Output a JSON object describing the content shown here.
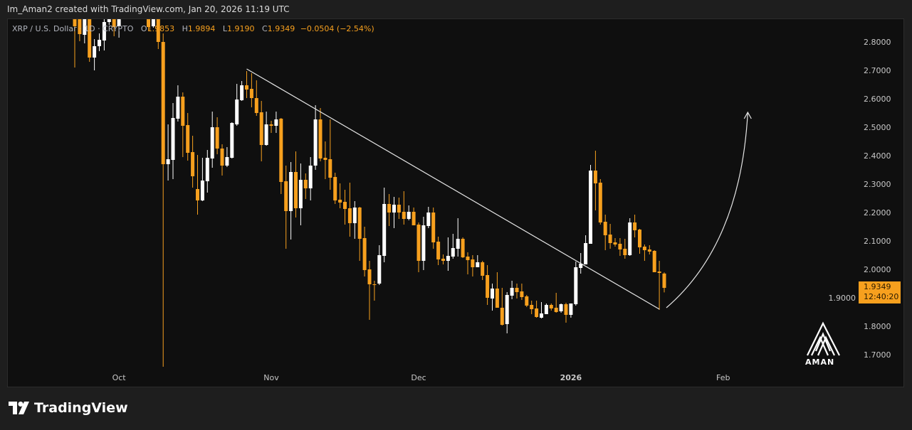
{
  "header": {
    "title": "Im_Aman2 created with TradingView.com, Jan 20, 2026 11:19 UTC"
  },
  "legend": {
    "symbol": "XRP / U.S. Dollar · 1D · CRYPTO",
    "open_label": "O",
    "open": "1.9853",
    "high_label": "H",
    "high": "1.9894",
    "low_label": "L",
    "low": "1.9190",
    "close_label": "C",
    "close": "1.9349",
    "change": "−0.0504 (−2.54%)"
  },
  "last_price": {
    "price": "1.9349",
    "countdown": "12:40:20"
  },
  "logo": {
    "text": "AMAN"
  },
  "footer": {
    "brand": "TradingView",
    "icon": "tradingview-logo-icon"
  },
  "colors": {
    "up": "#ffffff",
    "down": "#f7a01e",
    "background": "#0f0f0f",
    "trendline": "#e6e6e6",
    "price_box": "#f7a01e"
  },
  "chart_data": {
    "type": "candlestick",
    "title": "",
    "ylim": [
      1.63,
      2.88
    ],
    "yticks": [
      "2.8000",
      "2.7000",
      "2.6000",
      "2.5000",
      "2.4000",
      "2.3000",
      "2.2000",
      "2.1000",
      "2.0000",
      "1.9000",
      "1.8000",
      "1.7000"
    ],
    "xticks": [
      {
        "date": "2025-10-01",
        "label": "Oct"
      },
      {
        "date": "2025-11-01",
        "label": "Nov"
      },
      {
        "date": "2025-12-01",
        "label": "Dec"
      },
      {
        "date": "2026-01-01",
        "label": "2026"
      },
      {
        "date": "2026-02-01",
        "label": "Feb"
      }
    ],
    "columns": [
      "date",
      "open",
      "high",
      "low",
      "close"
    ],
    "candles": [
      [
        "2025-09-22",
        2.89,
        2.9,
        2.71,
        2.855
      ],
      [
        "2025-09-23",
        2.88,
        2.89,
        2.8025,
        2.8275
      ],
      [
        "2025-09-24",
        2.825,
        2.89,
        2.795,
        2.88
      ],
      [
        "2025-09-25",
        2.88,
        2.89,
        2.73,
        2.745
      ],
      [
        "2025-09-26",
        2.745,
        2.81,
        2.7,
        2.785
      ],
      [
        "2025-09-27",
        2.785,
        2.83,
        2.7675,
        2.8075
      ],
      [
        "2025-09-28",
        2.805,
        2.88,
        2.77,
        2.87
      ],
      [
        "2025-09-29",
        2.87,
        2.92,
        2.86,
        2.89
      ],
      [
        "2025-09-30",
        2.9,
        2.91,
        2.82,
        2.8525
      ],
      [
        "2025-10-01",
        2.855,
        2.93,
        2.815,
        2.9
      ],
      [
        "2025-10-02",
        2.9,
        3.0,
        2.89,
        2.97
      ],
      [
        "2025-10-03",
        2.97,
        3.03,
        2.94,
        3.0
      ],
      [
        "2025-10-04",
        3.0,
        3.02,
        2.93,
        2.96
      ],
      [
        "2025-10-05",
        2.96,
        3.0,
        2.92,
        2.95
      ],
      [
        "2025-10-06",
        2.95,
        2.98,
        2.89,
        2.9
      ],
      [
        "2025-10-07",
        2.9,
        2.92,
        2.84,
        2.8525
      ],
      [
        "2025-10-08",
        2.855,
        2.9,
        2.85,
        2.89
      ],
      [
        "2025-10-09",
        2.89,
        2.9,
        2.775,
        2.8
      ],
      [
        "2025-10-10",
        2.8,
        2.83,
        1.6575,
        2.37
      ],
      [
        "2025-10-11",
        2.37,
        2.51,
        2.3125,
        2.3875
      ],
      [
        "2025-10-12",
        2.385,
        2.585,
        2.3175,
        2.5325
      ],
      [
        "2025-10-13",
        2.53,
        2.6475,
        2.52,
        2.6075
      ],
      [
        "2025-10-14",
        2.6075,
        2.6225,
        2.395,
        2.505
      ],
      [
        "2025-10-15",
        2.5075,
        2.55,
        2.3825,
        2.41
      ],
      [
        "2025-10-16",
        2.4125,
        2.47,
        2.2875,
        2.3275
      ],
      [
        "2025-10-17",
        2.2825,
        2.4025,
        2.1925,
        2.2425
      ],
      [
        "2025-10-18",
        2.2425,
        2.3925,
        2.24,
        2.3125
      ],
      [
        "2025-10-19",
        2.31,
        2.42,
        2.27,
        2.3925
      ],
      [
        "2025-10-20",
        2.39,
        2.555,
        2.3575,
        2.5
      ],
      [
        "2025-10-21",
        2.5,
        2.535,
        2.405,
        2.425
      ],
      [
        "2025-10-22",
        2.425,
        2.44,
        2.33,
        2.365
      ],
      [
        "2025-10-23",
        2.365,
        2.43,
        2.36,
        2.395
      ],
      [
        "2025-10-24",
        2.3925,
        2.5175,
        2.39,
        2.515
      ],
      [
        "2025-10-25",
        2.51,
        2.6525,
        2.505,
        2.5975
      ],
      [
        "2025-10-26",
        2.595,
        2.6625,
        2.5925,
        2.6475
      ],
      [
        "2025-10-27",
        2.6475,
        2.6975,
        2.6025,
        2.6325
      ],
      [
        "2025-10-28",
        2.635,
        2.69,
        2.57,
        2.6025
      ],
      [
        "2025-10-29",
        2.6025,
        2.665,
        2.54,
        2.55
      ],
      [
        "2025-10-30",
        2.5525,
        2.5925,
        2.38,
        2.4375
      ],
      [
        "2025-10-31",
        2.4375,
        2.555,
        2.435,
        2.51
      ],
      [
        "2025-11-01",
        2.51,
        2.5225,
        2.48,
        2.505
      ],
      [
        "2025-11-02",
        2.505,
        2.555,
        2.48,
        2.5275
      ],
      [
        "2025-11-03",
        2.53,
        2.5325,
        2.265,
        2.3075
      ],
      [
        "2025-11-04",
        2.31,
        2.365,
        2.0725,
        2.205
      ],
      [
        "2025-11-05",
        2.205,
        2.3775,
        2.105,
        2.3425
      ],
      [
        "2025-11-06",
        2.3425,
        2.415,
        2.1825,
        2.215
      ],
      [
        "2025-11-07",
        2.215,
        2.3725,
        2.155,
        2.315
      ],
      [
        "2025-11-08",
        2.315,
        2.3375,
        2.2475,
        2.285
      ],
      [
        "2025-11-09",
        2.285,
        2.395,
        2.2425,
        2.365
      ],
      [
        "2025-11-10",
        2.365,
        2.5775,
        2.35,
        2.5275
      ],
      [
        "2025-11-11",
        2.5275,
        2.5675,
        2.38,
        2.39
      ],
      [
        "2025-11-12",
        2.3925,
        2.45,
        2.3175,
        2.385
      ],
      [
        "2025-11-13",
        2.3875,
        2.5275,
        2.28,
        2.3225
      ],
      [
        "2025-11-14",
        2.325,
        2.34,
        2.23,
        2.2425
      ],
      [
        "2025-11-15",
        2.245,
        2.3025,
        2.215,
        2.235
      ],
      [
        "2025-11-16",
        2.2375,
        2.28,
        2.1575,
        2.2125
      ],
      [
        "2025-11-17",
        2.215,
        2.305,
        2.115,
        2.1625
      ],
      [
        "2025-11-18",
        2.1625,
        2.24,
        2.1075,
        2.2175
      ],
      [
        "2025-11-19",
        2.2175,
        2.22,
        2.03,
        2.1075
      ],
      [
        "2025-11-20",
        2.11,
        2.15,
        1.975,
        1.9975
      ],
      [
        "2025-11-21",
        2.0,
        2.03,
        1.8225,
        1.9475
      ],
      [
        "2025-11-22",
        1.9475,
        1.96,
        1.89,
        1.945
      ],
      [
        "2025-11-23",
        1.95,
        2.085,
        1.945,
        2.05
      ],
      [
        "2025-11-24",
        2.0475,
        2.2875,
        2.025,
        2.23
      ],
      [
        "2025-11-25",
        2.23,
        2.265,
        2.1525,
        2.2
      ],
      [
        "2025-11-26",
        2.2,
        2.255,
        2.145,
        2.2275
      ],
      [
        "2025-11-27",
        2.2275,
        2.2525,
        2.1775,
        2.2
      ],
      [
        "2025-11-28",
        2.2025,
        2.275,
        2.1575,
        2.1775
      ],
      [
        "2025-11-29",
        2.1775,
        2.225,
        2.1725,
        2.2025
      ],
      [
        "2025-11-30",
        2.2025,
        2.2175,
        2.155,
        2.155
      ],
      [
        "2025-12-01",
        2.1575,
        2.165,
        1.99,
        2.03
      ],
      [
        "2025-12-02",
        2.03,
        2.185,
        1.9975,
        2.155
      ],
      [
        "2025-12-03",
        2.1525,
        2.22,
        2.145,
        2.2
      ],
      [
        "2025-12-04",
        2.2,
        2.2175,
        2.0725,
        2.095
      ],
      [
        "2025-12-05",
        2.0975,
        2.115,
        2.015,
        2.035
      ],
      [
        "2025-12-06",
        2.0375,
        2.0525,
        2.0175,
        2.03
      ],
      [
        "2025-12-07",
        2.03,
        2.1125,
        1.995,
        2.0475
      ],
      [
        "2025-12-08",
        2.045,
        2.125,
        2.0375,
        2.075
      ],
      [
        "2025-12-09",
        2.0725,
        2.18,
        2.045,
        2.1075
      ],
      [
        "2025-12-10",
        2.1075,
        2.1125,
        2.04,
        2.0425
      ],
      [
        "2025-12-11",
        2.045,
        2.06,
        1.9825,
        2.0325
      ],
      [
        "2025-12-12",
        2.035,
        2.05,
        1.975,
        2.0075
      ],
      [
        "2025-12-13",
        2.0075,
        2.05,
        2.0075,
        2.025
      ],
      [
        "2025-12-14",
        2.025,
        2.03,
        1.9625,
        1.9775
      ],
      [
        "2025-12-15",
        1.98,
        2.015,
        1.875,
        1.9
      ],
      [
        "2025-12-16",
        1.8975,
        1.95,
        1.855,
        1.9325
      ],
      [
        "2025-12-17",
        1.9325,
        1.99,
        1.865,
        1.865
      ],
      [
        "2025-12-18",
        1.865,
        1.935,
        1.8025,
        1.805
      ],
      [
        "2025-12-19",
        1.8075,
        1.92,
        1.775,
        1.91
      ],
      [
        "2025-12-20",
        1.9075,
        1.96,
        1.895,
        1.935
      ],
      [
        "2025-12-21",
        1.935,
        1.95,
        1.8975,
        1.92
      ],
      [
        "2025-12-22",
        1.9225,
        1.95,
        1.8925,
        1.9025
      ],
      [
        "2025-12-23",
        1.905,
        1.91,
        1.8675,
        1.8725
      ],
      [
        "2025-12-24",
        1.875,
        1.89,
        1.8425,
        1.86
      ],
      [
        "2025-12-25",
        1.8625,
        1.89,
        1.83,
        1.8325
      ],
      [
        "2025-12-26",
        1.83,
        1.885,
        1.8275,
        1.845
      ],
      [
        "2025-12-27",
        1.8425,
        1.88,
        1.8425,
        1.875
      ],
      [
        "2025-12-28",
        1.875,
        1.88,
        1.855,
        1.8625
      ],
      [
        "2025-12-29",
        1.865,
        1.9175,
        1.8475,
        1.85
      ],
      [
        "2025-12-30",
        1.8525,
        1.88,
        1.8475,
        1.8775
      ],
      [
        "2025-12-31",
        1.8775,
        1.8825,
        1.8125,
        1.84
      ],
      [
        "2026-01-01",
        1.84,
        1.88,
        1.83,
        1.88
      ],
      [
        "2026-01-02",
        1.8775,
        2.0275,
        1.8725,
        2.0075
      ],
      [
        "2026-01-03",
        2.005,
        2.0575,
        1.985,
        2.02
      ],
      [
        "2026-01-04",
        2.0175,
        2.12,
        2.0175,
        2.0925
      ],
      [
        "2026-01-05",
        2.09,
        2.3675,
        2.09,
        2.3475
      ],
      [
        "2026-01-06",
        2.3475,
        2.4175,
        2.2075,
        2.3025
      ],
      [
        "2026-01-07",
        2.305,
        2.3175,
        2.1575,
        2.165
      ],
      [
        "2026-01-08",
        2.1675,
        2.1925,
        2.0675,
        2.12
      ],
      [
        "2026-01-09",
        2.1225,
        2.16,
        2.0725,
        2.0925
      ],
      [
        "2026-01-10",
        2.095,
        2.11,
        2.08,
        2.0875
      ],
      [
        "2026-01-11",
        2.09,
        2.11,
        2.0475,
        2.07
      ],
      [
        "2026-01-12",
        2.0725,
        2.1075,
        2.0375,
        2.05
      ],
      [
        "2026-01-13",
        2.05,
        2.18,
        2.0475,
        2.165
      ],
      [
        "2026-01-14",
        2.165,
        2.1925,
        2.1125,
        2.1375
      ],
      [
        "2026-01-15",
        2.14,
        2.1425,
        2.055,
        2.0775
      ],
      [
        "2026-01-16",
        2.08,
        2.0875,
        2.03,
        2.0675
      ],
      [
        "2026-01-17",
        2.07,
        2.085,
        2.0525,
        2.0625
      ],
      [
        "2026-01-18",
        2.065,
        2.0675,
        1.99,
        1.99
      ],
      [
        "2026-01-19",
        1.9925,
        2.03,
        1.8575,
        1.9875
      ],
      [
        "2026-01-20",
        1.9853,
        1.9894,
        1.919,
        1.9349
      ]
    ],
    "drawings": [
      {
        "type": "trendline",
        "from": {
          "date": "2025-10-27",
          "price": 2.705
        },
        "to": {
          "date": "2026-01-19",
          "price": 1.86
        }
      },
      {
        "type": "curved-arrow",
        "from": {
          "date": "2026-01-20",
          "price": 1.865
        },
        "to": {
          "date": "2026-02-06",
          "price": 2.5525
        }
      }
    ]
  }
}
